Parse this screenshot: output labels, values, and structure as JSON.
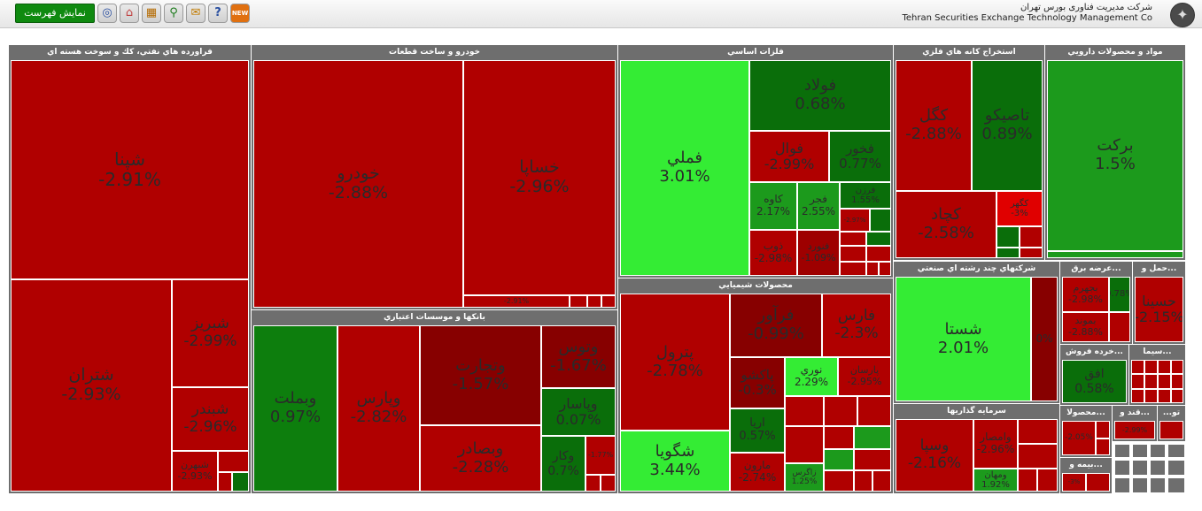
{
  "toolbar": {
    "show_list_label": "نمایش فهرست",
    "icons": [
      "world-icon",
      "home-icon",
      "table-icon",
      "search-icon",
      "chat-icon",
      "help-icon",
      "new-icon"
    ],
    "company_fa": "شرکت مدیریت فناوری بورس تهران",
    "company_en": "Tehran Securities Exchange Technology Management Co"
  },
  "colors": {
    "red": "#b00000",
    "dark_red": "#870000",
    "green": "#1c9a1c",
    "dark_green": "#0a6e0a",
    "light_green": "#34ec34",
    "header": "#6e6e6e"
  },
  "sectors": [
    {
      "name": "فراورده هاي نفتي، كك و سوخت هسته اي",
      "tiles": [
        {
          "name": "شپنا",
          "pct": "-2.91%"
        },
        {
          "name": "شتران",
          "pct": "-2.93%"
        },
        {
          "name": "شبريز",
          "pct": "-2.99%"
        },
        {
          "name": "شبندر",
          "pct": "-2.96%"
        },
        {
          "name": "شبهرن",
          "pct": "-2.93%"
        }
      ]
    },
    {
      "name": "خودرو و ساخت قطعات",
      "tiles": [
        {
          "name": "خودرو",
          "pct": "-2.88%"
        },
        {
          "name": "خساپا",
          "pct": "-2.96%"
        },
        {
          "name": "",
          "pct": "-2.91%"
        }
      ]
    },
    {
      "name": "بانكها و موسسات اعتباري",
      "tiles": [
        {
          "name": "وبملت",
          "pct": "0.97%"
        },
        {
          "name": "وپارس",
          "pct": "-2.82%"
        },
        {
          "name": "وتجارت",
          "pct": "-1.57%"
        },
        {
          "name": "وبصادر",
          "pct": "-2.28%"
        },
        {
          "name": "وتوس",
          "pct": "-1.67%"
        },
        {
          "name": "وپاسار",
          "pct": "0.07%"
        },
        {
          "name": "وكار",
          "pct": "0.7%"
        },
        {
          "name": "",
          "pct": "-1.77%"
        }
      ]
    },
    {
      "name": "فلزات اساسي",
      "tiles": [
        {
          "name": "فملي",
          "pct": "3.01%"
        },
        {
          "name": "فولاد",
          "pct": "0.68%"
        },
        {
          "name": "فوال",
          "pct": "-2.99%"
        },
        {
          "name": "فخور",
          "pct": "0.77%"
        },
        {
          "name": "كاوه",
          "pct": "2.17%"
        },
        {
          "name": "فجر",
          "pct": "2.55%"
        },
        {
          "name": "فرزن",
          "pct": "1.55%"
        },
        {
          "name": "ذوب",
          "pct": "-2.98%"
        },
        {
          "name": "فنورد",
          "pct": "-1.09%"
        },
        {
          "name": "",
          "pct": "-2.97%"
        }
      ]
    },
    {
      "name": "محصولات شيميايي",
      "tiles": [
        {
          "name": "پترول",
          "pct": "-2.78%"
        },
        {
          "name": "شگويا",
          "pct": "3.44%"
        },
        {
          "name": "فرآور",
          "pct": "-0.99%"
        },
        {
          "name": "فارس",
          "pct": "-2.3%"
        },
        {
          "name": "نوري",
          "pct": "2.29%"
        },
        {
          "name": "پارسان",
          "pct": "-2.95%"
        },
        {
          "name": "پاكشو",
          "pct": "-0.3%"
        },
        {
          "name": "اريا",
          "pct": "0.57%"
        },
        {
          "name": "مارون",
          "pct": "-2.74%"
        },
        {
          "name": "زاگرس",
          "pct": "1.25%"
        }
      ]
    },
    {
      "name": "استخراج كانه هاي فلزي",
      "tiles": [
        {
          "name": "كگل",
          "pct": "-2.88%"
        },
        {
          "name": "تاصيكو",
          "pct": "0.89%"
        },
        {
          "name": "كچاد",
          "pct": "-2.58%"
        },
        {
          "name": "كگهر",
          "pct": "-3%"
        }
      ]
    },
    {
      "name": "مواد و محصولات دارويي",
      "tiles": [
        {
          "name": "بركت",
          "pct": "1.5%"
        }
      ]
    },
    {
      "name": "شركتهاي چند رشته اي صنعتي",
      "tiles": [
        {
          "name": "شستا",
          "pct": "2.01%"
        },
        {
          "name": "",
          "pct": "0%"
        }
      ]
    },
    {
      "name": "سرمايه گذاريها",
      "tiles": [
        {
          "name": "وسپا",
          "pct": "-2.16%"
        },
        {
          "name": "وامصار",
          "pct": "-2.96%"
        },
        {
          "name": "ومهان",
          "pct": "1.92%"
        }
      ]
    },
    {
      "name": "عرضه برق...",
      "tiles": [
        {
          "name": "بجهرم",
          "pct": "-2.98%"
        },
        {
          "name": "بموند",
          "pct": "-2.88%"
        },
        {
          "name": "",
          "pct": "0.78%"
        }
      ]
    },
    {
      "name": "حمل و...",
      "tiles": [
        {
          "name": "حسينا",
          "pct": "-2.15%"
        }
      ]
    },
    {
      "name": "خرده فروش...",
      "tiles": [
        {
          "name": "افق",
          "pct": "0.58%"
        }
      ]
    },
    {
      "name": "سيما...",
      "tiles": []
    },
    {
      "name": "محصولا...",
      "tiles": [
        {
          "name": "",
          "pct": "-2.05%"
        }
      ]
    },
    {
      "name": "قند و...",
      "tiles": [
        {
          "name": "",
          "pct": "-2.99%"
        }
      ]
    },
    {
      "name": "بيمه و...",
      "tiles": [
        {
          "name": "",
          "pct": "-3%"
        }
      ]
    },
    {
      "name": "...تو",
      "tiles": []
    }
  ]
}
